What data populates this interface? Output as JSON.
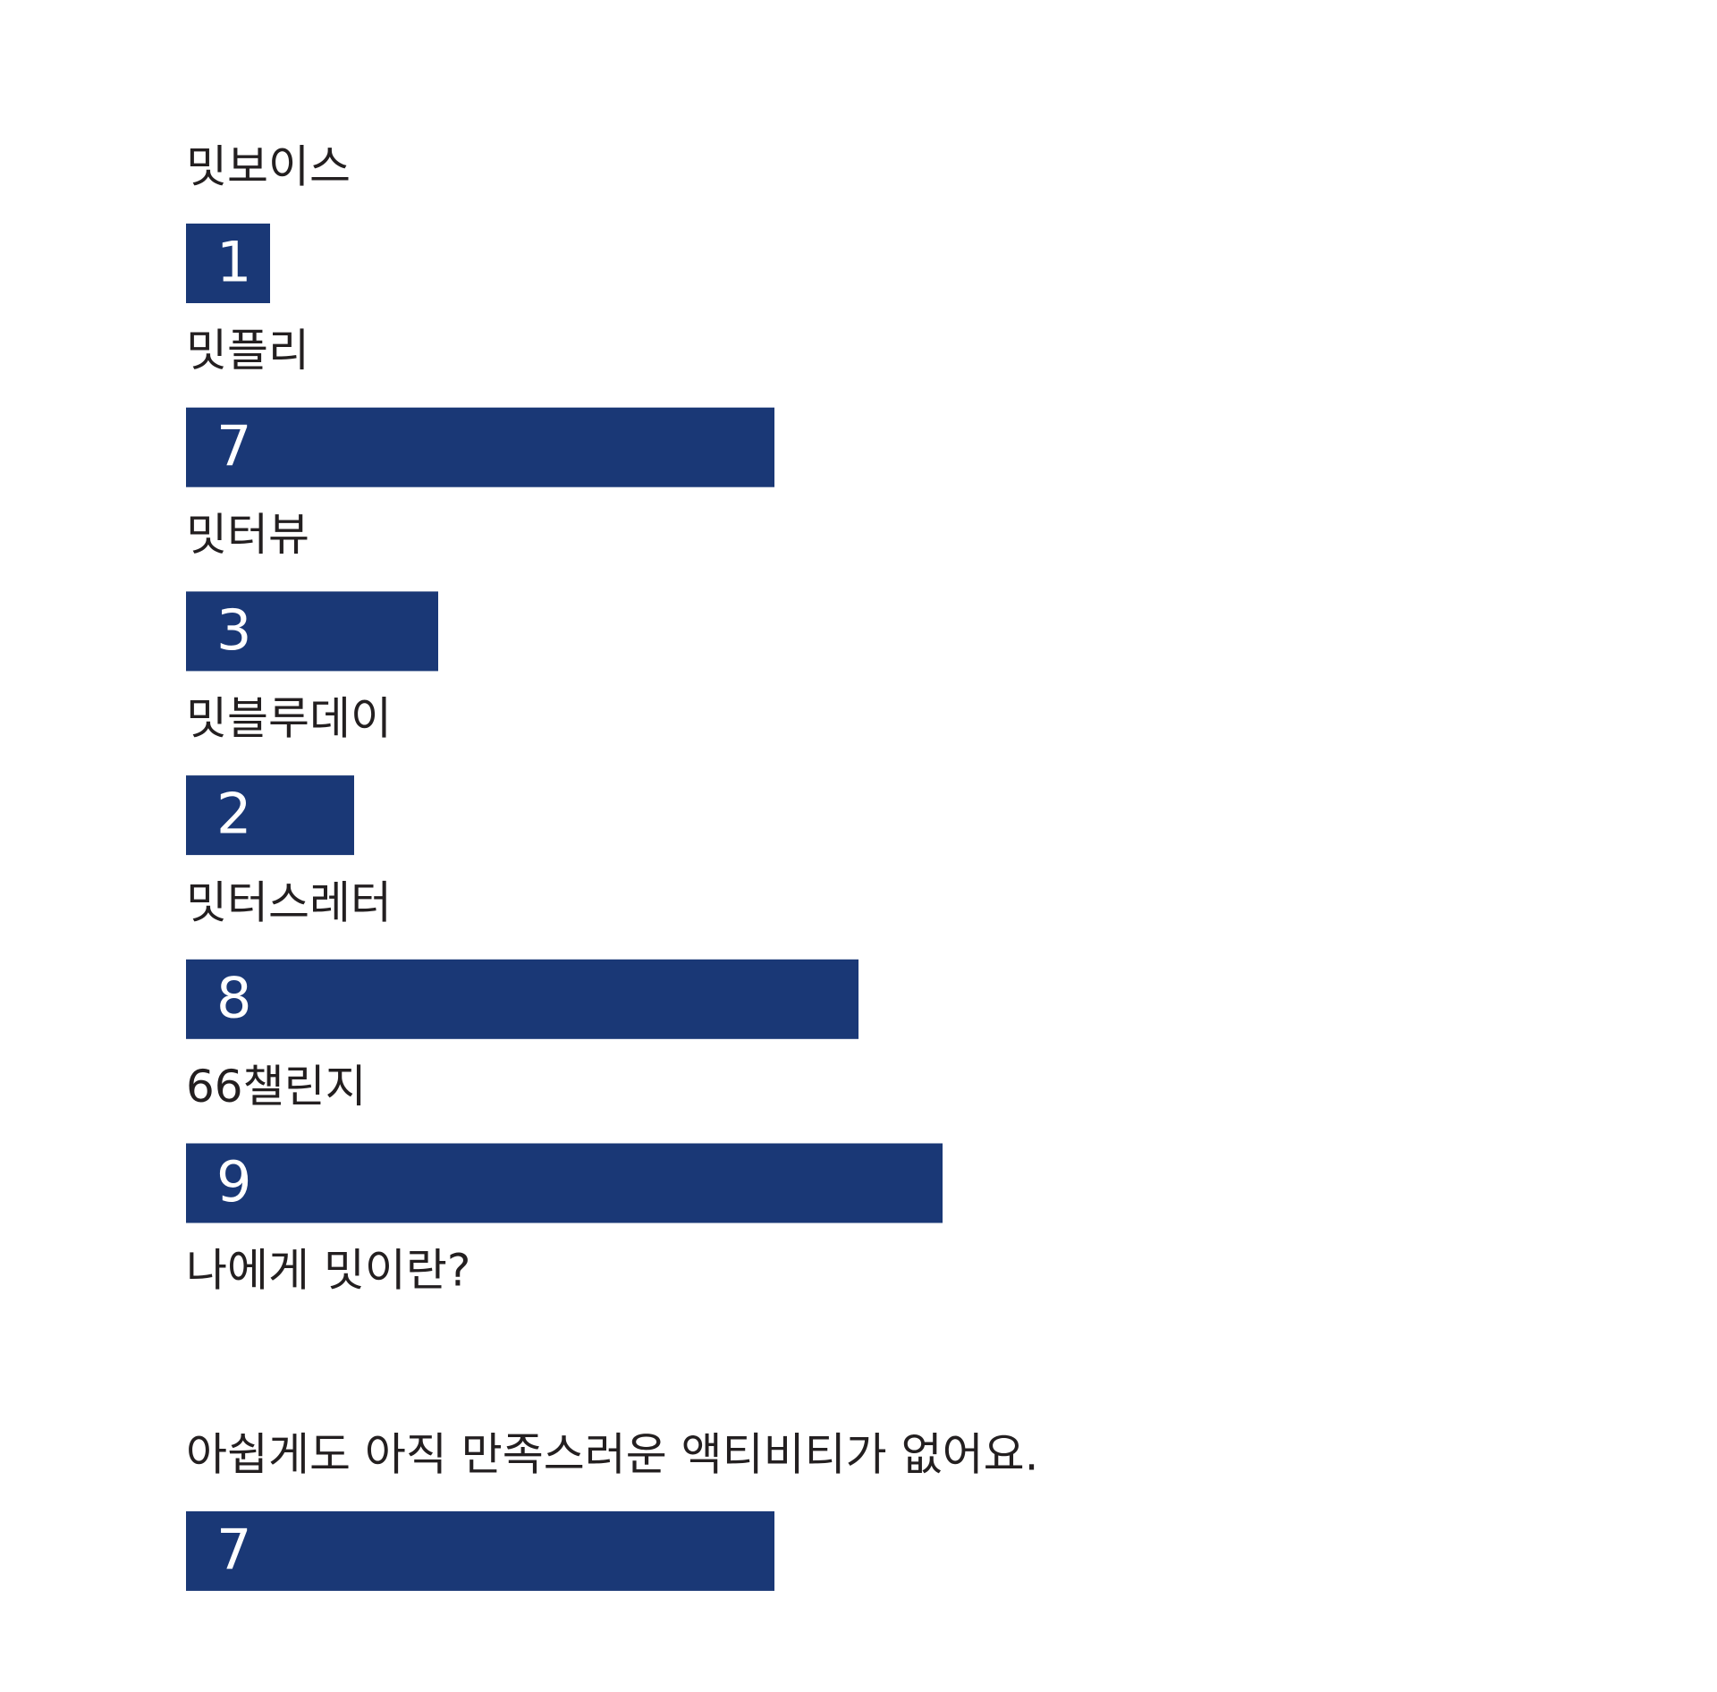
{
  "chart_data": {
    "type": "bar",
    "orientation": "horizontal",
    "color": "#1a3876",
    "categories": [
      "밋보이스",
      "밋플리",
      "밋터뷰",
      "밋블루데이",
      "밋터스레터",
      "66챌린지",
      "나에게 밋이란?",
      "아쉽게도 아직 만족스러운 액티비티가 없어요."
    ],
    "values": [
      1,
      7,
      3,
      2,
      8,
      9,
      null,
      7
    ]
  }
}
